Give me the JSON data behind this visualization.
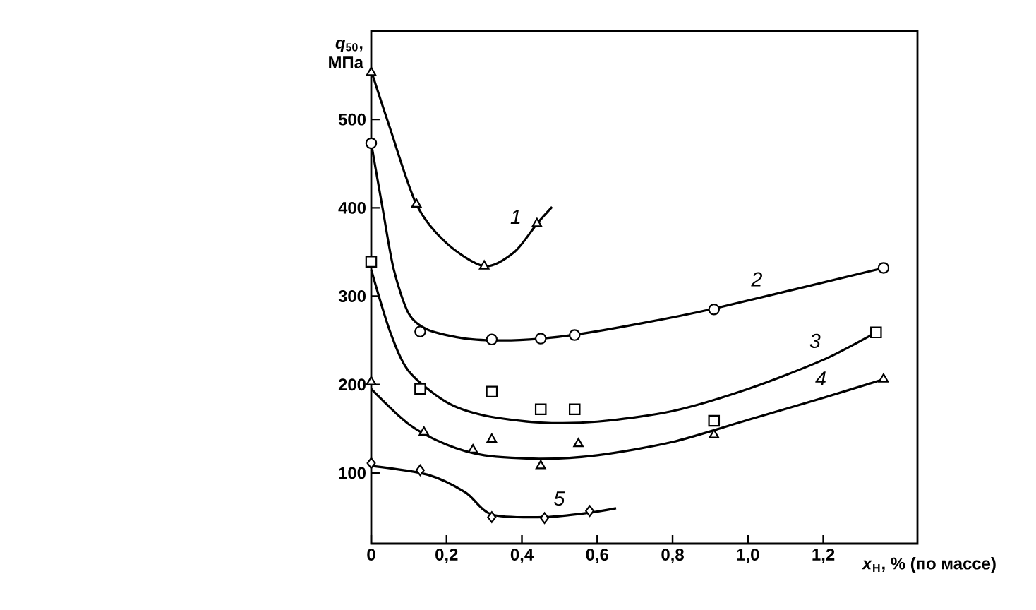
{
  "chart_data": {
    "type": "line",
    "xlabel": "*x*$_{H}$, % (по массе)",
    "ylabel": "*q*$_{50}$, МПа",
    "xlim": [
      0,
      1.45
    ],
    "ylim": [
      20,
      600
    ],
    "xticks": [
      0,
      {
        "value": 0.2,
        "label": "0,2"
      },
      {
        "value": 0.4,
        "label": "0,4"
      },
      {
        "value": 0.6,
        "label": "0,6"
      },
      {
        "value": 0.8,
        "label": "0,8"
      },
      {
        "value": 1.0,
        "label": "1,0"
      },
      {
        "value": 1.2,
        "label": "1,2"
      }
    ],
    "yticks": [
      100,
      200,
      300,
      400,
      500
    ],
    "grid": false,
    "legend": false,
    "series": [
      {
        "type": "scatter",
        "marker": "triangle",
        "color": "#000000",
        "x": [
          0,
          0.12,
          0.3,
          0.44
        ],
        "values": [
          553,
          404,
          334,
          382
        ]
      },
      {
        "type": "scatter",
        "marker": "circle",
        "color": "#000000",
        "x": [
          0,
          0.13,
          0.32,
          0.45,
          0.54,
          0.91,
          1.36
        ],
        "values": [
          473,
          260,
          251,
          252,
          256,
          285,
          332
        ]
      },
      {
        "type": "scatter",
        "marker": "square",
        "color": "#000000",
        "x": [
          0,
          0.13,
          0.32,
          0.45,
          0.54,
          0.91,
          1.34
        ],
        "values": [
          339,
          195,
          192,
          172,
          172,
          159,
          259
        ]
      },
      {
        "type": "scatter",
        "marker": "triangle",
        "color": "#000000",
        "x": [
          0,
          0.14,
          0.27,
          0.32,
          0.45,
          0.55,
          0.91,
          1.36
        ],
        "values": [
          203,
          146,
          126,
          138,
          108,
          133,
          143,
          206
        ]
      },
      {
        "type": "scatter",
        "marker": "diamond",
        "color": "#000000",
        "x": [
          0,
          0.13,
          0.32,
          0.46,
          0.58
        ],
        "values": [
          111,
          103,
          50,
          49,
          57
        ]
      },
      {
        "name": "1",
        "marker": "none",
        "color": "#000000",
        "x": [
          0,
          0.05,
          0.12,
          0.2,
          0.3,
          0.38,
          0.44,
          0.48
        ],
        "values": [
          555,
          490,
          404,
          360,
          334,
          350,
          382,
          401
        ]
      },
      {
        "name": "2",
        "marker": "none",
        "color": "#000000",
        "x": [
          0,
          0.03,
          0.06,
          0.1,
          0.15,
          0.25,
          0.35,
          0.45,
          0.55,
          0.7,
          0.9,
          1.36
        ],
        "values": [
          473,
          400,
          330,
          280,
          262,
          252,
          250,
          252,
          257,
          268,
          285,
          332
        ]
      },
      {
        "name": "3",
        "marker": "none",
        "color": "#000000",
        "x": [
          0,
          0.05,
          0.1,
          0.2,
          0.3,
          0.45,
          0.6,
          0.8,
          1.0,
          1.2,
          1.34
        ],
        "values": [
          330,
          260,
          215,
          180,
          165,
          157,
          158,
          170,
          195,
          228,
          259
        ]
      },
      {
        "name": "4",
        "marker": "none",
        "color": "#000000",
        "x": [
          0,
          0.1,
          0.2,
          0.3,
          0.45,
          0.6,
          0.8,
          1.0,
          1.2,
          1.36
        ],
        "values": [
          195,
          155,
          132,
          120,
          116,
          120,
          135,
          160,
          185,
          206
        ]
      },
      {
        "name": "5",
        "marker": "none",
        "color": "#000000",
        "x": [
          0,
          0.15,
          0.25,
          0.32,
          0.46,
          0.58,
          0.65
        ],
        "values": [
          108,
          98,
          78,
          53,
          50,
          55,
          60
        ]
      }
    ]
  }
}
